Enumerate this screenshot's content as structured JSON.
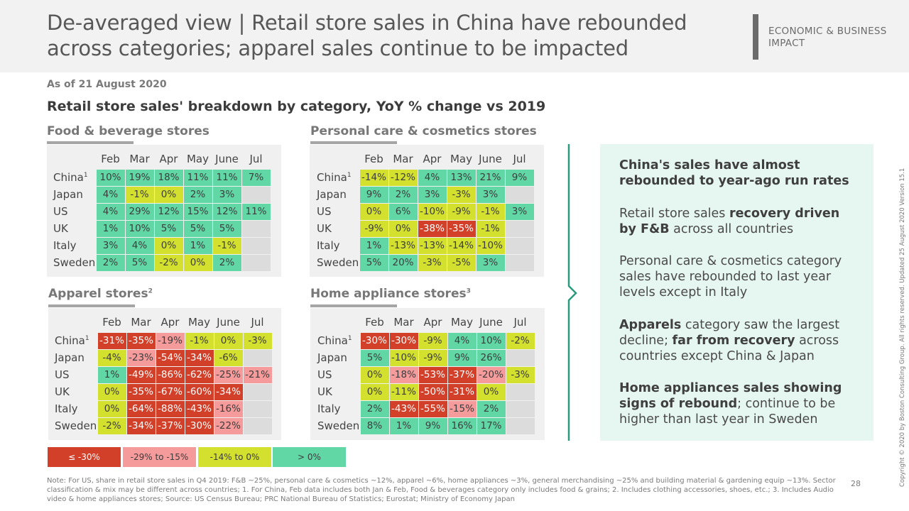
{
  "header": {
    "title": "De-averaged view | Retail store sales in China have rebounded across categories; apparel sales continue to be impacted",
    "section_tag": "ECONOMIC & BUSINESS IMPACT"
  },
  "as_of": "As of 21 August 2020",
  "subtitle": "Retail store sales' breakdown by category, YoY % change vs 2019",
  "months": [
    "Feb",
    "Mar",
    "Apr",
    "May",
    "June",
    "Jul"
  ],
  "panels": [
    {
      "title": "Food & beverage stores",
      "rows": [
        {
          "label": "China",
          "sup": "1",
          "cells": [
            [
              "10%",
              "g"
            ],
            [
              "19%",
              "g"
            ],
            [
              "18%",
              "g"
            ],
            [
              "11%",
              "g"
            ],
            [
              "11%",
              "g"
            ],
            [
              "7%",
              "g"
            ]
          ]
        },
        {
          "label": "Japan",
          "sup": "",
          "cells": [
            [
              "4%",
              "g"
            ],
            [
              "-1%",
              "y"
            ],
            [
              "0%",
              "y"
            ],
            [
              "2%",
              "g"
            ],
            [
              "3%",
              "g"
            ],
            [
              "",
              "n"
            ]
          ]
        },
        {
          "label": "US",
          "sup": "",
          "cells": [
            [
              "4%",
              "g"
            ],
            [
              "29%",
              "g"
            ],
            [
              "12%",
              "g"
            ],
            [
              "15%",
              "g"
            ],
            [
              "12%",
              "g"
            ],
            [
              "11%",
              "g"
            ]
          ]
        },
        {
          "label": "UK",
          "sup": "",
          "cells": [
            [
              "1%",
              "g"
            ],
            [
              "10%",
              "g"
            ],
            [
              "5%",
              "g"
            ],
            [
              "5%",
              "g"
            ],
            [
              "5%",
              "g"
            ],
            [
              "",
              "n"
            ]
          ]
        },
        {
          "label": "Italy",
          "sup": "",
          "cells": [
            [
              "3%",
              "g"
            ],
            [
              "4%",
              "g"
            ],
            [
              "0%",
              "y"
            ],
            [
              "1%",
              "g"
            ],
            [
              "-1%",
              "y"
            ],
            [
              "",
              "n"
            ]
          ]
        },
        {
          "label": "Sweden",
          "sup": "",
          "cells": [
            [
              "2%",
              "g"
            ],
            [
              "5%",
              "g"
            ],
            [
              "-2%",
              "y"
            ],
            [
              "0%",
              "y"
            ],
            [
              "2%",
              "g"
            ],
            [
              "",
              "n"
            ]
          ]
        }
      ]
    },
    {
      "title": "Personal care & cosmetics stores",
      "rows": [
        {
          "label": "China",
          "sup": "1",
          "cells": [
            [
              "-14%",
              "y"
            ],
            [
              "-12%",
              "y"
            ],
            [
              "4%",
              "g"
            ],
            [
              "13%",
              "g"
            ],
            [
              "21%",
              "g"
            ],
            [
              "9%",
              "g"
            ]
          ]
        },
        {
          "label": "Japan",
          "sup": "",
          "cells": [
            [
              "9%",
              "g"
            ],
            [
              "2%",
              "g"
            ],
            [
              "3%",
              "g"
            ],
            [
              "-3%",
              "y"
            ],
            [
              "3%",
              "g"
            ],
            [
              "",
              "n"
            ]
          ]
        },
        {
          "label": "US",
          "sup": "",
          "cells": [
            [
              "0%",
              "y"
            ],
            [
              "6%",
              "g"
            ],
            [
              "-10%",
              "y"
            ],
            [
              "-9%",
              "y"
            ],
            [
              "-1%",
              "y"
            ],
            [
              "3%",
              "g"
            ]
          ]
        },
        {
          "label": "UK",
          "sup": "",
          "cells": [
            [
              "-9%",
              "y"
            ],
            [
              "0%",
              "y"
            ],
            [
              "-38%",
              "r"
            ],
            [
              "-35%",
              "r"
            ],
            [
              "-1%",
              "y"
            ],
            [
              "",
              "n"
            ]
          ]
        },
        {
          "label": "Italy",
          "sup": "",
          "cells": [
            [
              "1%",
              "g"
            ],
            [
              "-13%",
              "y"
            ],
            [
              "-13%",
              "y"
            ],
            [
              "-14%",
              "y"
            ],
            [
              "-10%",
              "y"
            ],
            [
              "",
              "n"
            ]
          ]
        },
        {
          "label": "Sweden",
          "sup": "",
          "cells": [
            [
              "5%",
              "g"
            ],
            [
              "20%",
              "g"
            ],
            [
              "-3%",
              "y"
            ],
            [
              "-5%",
              "y"
            ],
            [
              "3%",
              "g"
            ],
            [
              "",
              "n"
            ]
          ]
        }
      ]
    },
    {
      "title": "Apparel stores",
      "title_sup": "2",
      "rows": [
        {
          "label": "China",
          "sup": "1",
          "cells": [
            [
              "-31%",
              "r"
            ],
            [
              "-35%",
              "r"
            ],
            [
              "-19%",
              "p"
            ],
            [
              "-1%",
              "y"
            ],
            [
              "0%",
              "y"
            ],
            [
              "-3%",
              "y"
            ]
          ]
        },
        {
          "label": "Japan",
          "sup": "",
          "cells": [
            [
              "-4%",
              "y"
            ],
            [
              "-23%",
              "p"
            ],
            [
              "-54%",
              "r"
            ],
            [
              "-34%",
              "r"
            ],
            [
              "-6%",
              "y"
            ],
            [
              "",
              "n"
            ]
          ]
        },
        {
          "label": "US",
          "sup": "",
          "cells": [
            [
              "1%",
              "g"
            ],
            [
              "-49%",
              "r"
            ],
            [
              "-86%",
              "r"
            ],
            [
              "-62%",
              "r"
            ],
            [
              "-25%",
              "p"
            ],
            [
              "-21%",
              "p"
            ]
          ]
        },
        {
          "label": "UK",
          "sup": "",
          "cells": [
            [
              "0%",
              "y"
            ],
            [
              "-35%",
              "r"
            ],
            [
              "-67%",
              "r"
            ],
            [
              "-60%",
              "r"
            ],
            [
              "-34%",
              "r"
            ],
            [
              "",
              "n"
            ]
          ]
        },
        {
          "label": "Italy",
          "sup": "",
          "cells": [
            [
              "0%",
              "y"
            ],
            [
              "-64%",
              "r"
            ],
            [
              "-88%",
              "r"
            ],
            [
              "-43%",
              "r"
            ],
            [
              "-16%",
              "p"
            ],
            [
              "",
              "n"
            ]
          ]
        },
        {
          "label": "Sweden",
          "sup": "",
          "cells": [
            [
              "-2%",
              "y"
            ],
            [
              "-34%",
              "r"
            ],
            [
              "-37%",
              "r"
            ],
            [
              "-30%",
              "r"
            ],
            [
              "-22%",
              "p"
            ],
            [
              "",
              "n"
            ]
          ]
        }
      ]
    },
    {
      "title": "Home appliance stores",
      "title_sup": "3",
      "rows": [
        {
          "label": "China",
          "sup": "1",
          "cells": [
            [
              "-30%",
              "r"
            ],
            [
              "-30%",
              "r"
            ],
            [
              "-9%",
              "y"
            ],
            [
              "4%",
              "g"
            ],
            [
              "10%",
              "g"
            ],
            [
              "-2%",
              "y"
            ]
          ]
        },
        {
          "label": "Japan",
          "sup": "",
          "cells": [
            [
              "5%",
              "g"
            ],
            [
              "-10%",
              "y"
            ],
            [
              "-9%",
              "y"
            ],
            [
              "9%",
              "g"
            ],
            [
              "26%",
              "g"
            ],
            [
              "",
              "n"
            ]
          ]
        },
        {
          "label": "US",
          "sup": "",
          "cells": [
            [
              "0%",
              "y"
            ],
            [
              "-18%",
              "p"
            ],
            [
              "-53%",
              "r"
            ],
            [
              "-37%",
              "r"
            ],
            [
              "-20%",
              "p"
            ],
            [
              "-3%",
              "y"
            ]
          ]
        },
        {
          "label": "UK",
          "sup": "",
          "cells": [
            [
              "0%",
              "y"
            ],
            [
              "-11%",
              "y"
            ],
            [
              "-50%",
              "r"
            ],
            [
              "-31%",
              "r"
            ],
            [
              "0%",
              "y"
            ],
            [
              "",
              "n"
            ]
          ]
        },
        {
          "label": "Italy",
          "sup": "",
          "cells": [
            [
              "2%",
              "g"
            ],
            [
              "-43%",
              "r"
            ],
            [
              "-55%",
              "r"
            ],
            [
              "-15%",
              "p"
            ],
            [
              "2%",
              "g"
            ],
            [
              "",
              "n"
            ]
          ]
        },
        {
          "label": "Sweden",
          "sup": "",
          "cells": [
            [
              "8%",
              "g"
            ],
            [
              "1%",
              "g"
            ],
            [
              "9%",
              "g"
            ],
            [
              "16%",
              "g"
            ],
            [
              "17%",
              "g"
            ],
            [
              "",
              "n"
            ]
          ]
        }
      ]
    }
  ],
  "legend": [
    {
      "label": "≤ -30%",
      "color": "#d2402a"
    },
    {
      "label": "-29% to -15%",
      "color": "#f59b9b"
    },
    {
      "label": "-14% to 0%",
      "color": "#d3e02e"
    },
    {
      "label": "> 0%",
      "color": "#62d7a6"
    }
  ],
  "sidebar": {
    "p1": "China's sales have almost rebounded to year-ago run rates",
    "p2a": "Retail store sales ",
    "p2b": "recovery driven by F&B",
    "p2c": " across all countries",
    "p3": "Personal care & cosmetics category sales have rebounded to last year levels except in Italy",
    "p4a": "Apparels",
    "p4b": " category saw the largest decline; ",
    "p4c": "far from recovery",
    "p4d": " across countries except China & Japan",
    "p5a": "Home appliances sales showing signs of rebound",
    "p5b": "; continue to be higher than last year in Sweden"
  },
  "note": "Note: For US, share in retail store sales in Q4 2019: F&B ~25%, personal care & cosmetics ~12%, apparel ~6%, home appliances ~3%, general merchandising ~25% and building material & gardening equip ~13%. Sector classification & mix may be different across countries;  1. For China, Feb data includes both Jan & Feb, Food & beverages category only includes food & grains;  2. Includes clothing accessories, shoes, etc.;  3. Includes Audio video & home appliances stores;  Source: US Census Bureau; PRC National Bureau of Statistics; Eurostat; Ministry of Economy Japan",
  "page_number": "28",
  "copyright": "Copyright © 2020 by Boston Consulting Group. All rights reserved. Updated 25 August 2020 Version 15.1"
}
